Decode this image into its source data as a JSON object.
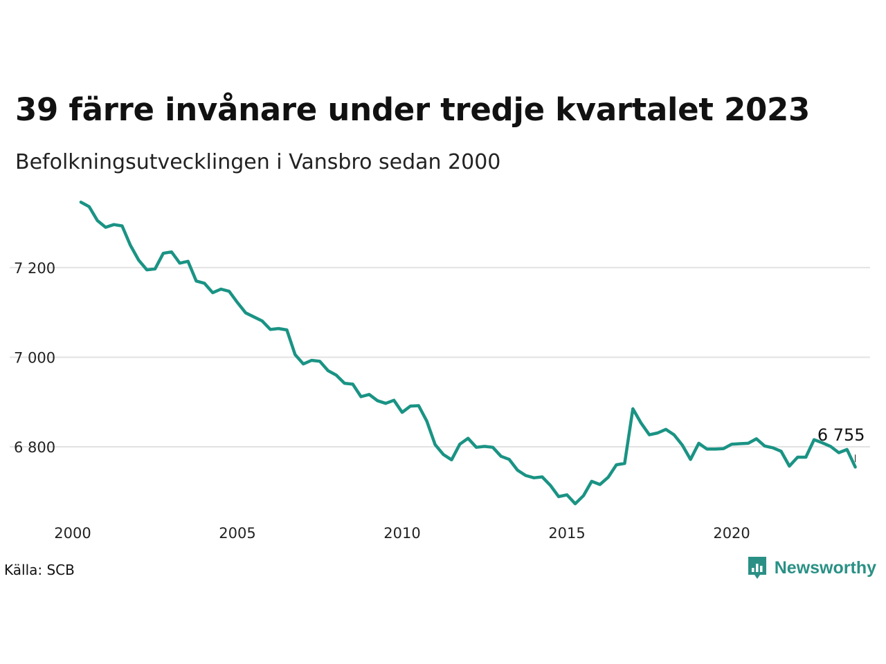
{
  "chart_data": {
    "type": "line",
    "title": "39 färre invånare under tredje kvartalet 2023",
    "subtitle": "Befolkningsutvecklingen i Vansbro sedan 2000",
    "source": "Källa: SCB",
    "brand": "Newsworthy",
    "x_ticks": [
      "2000",
      "2005",
      "2010",
      "2015",
      "2020"
    ],
    "y_ticks": [
      {
        "value": 6800,
        "label": "6 800"
      },
      {
        "value": 7000,
        "label": "7 000"
      },
      {
        "value": 7200,
        "label": "7 200"
      }
    ],
    "xlim": [
      2000,
      2024.2
    ],
    "ylim": [
      6655,
      7365
    ],
    "grid": true,
    "end_label": "6 755",
    "colors": {
      "line": "#1a9384",
      "grid": "#e2e2e2",
      "brand": "#2a9085"
    },
    "series": [
      {
        "x": [
          2000.25,
          2000.5,
          2000.75,
          2001.0,
          2001.25,
          2001.5,
          2001.75,
          2002.0,
          2002.25,
          2002.5,
          2002.75,
          2003.0,
          2003.25,
          2003.5,
          2003.75,
          2004.0,
          2004.25,
          2004.5,
          2004.75,
          2005.0,
          2005.25,
          2005.5,
          2005.75,
          2006.0,
          2006.25,
          2006.5,
          2006.75,
          2007.0,
          2007.25,
          2007.5,
          2007.75,
          2008.0,
          2008.25,
          2008.5,
          2008.75,
          2009.0,
          2009.25,
          2009.5,
          2009.75,
          2010.0,
          2010.25,
          2010.5,
          2010.75,
          2011.0,
          2011.25,
          2011.5,
          2011.75,
          2012.0,
          2012.25,
          2012.5,
          2012.75,
          2013.0,
          2013.25,
          2013.5,
          2013.75,
          2014.0,
          2014.25,
          2014.5,
          2014.75,
          2015.0,
          2015.25,
          2015.5,
          2015.75,
          2016.0,
          2016.25,
          2016.5,
          2016.75,
          2017.0,
          2017.25,
          2017.5,
          2017.75,
          2018.0,
          2018.25,
          2018.5,
          2018.75,
          2019.0,
          2019.25,
          2019.5,
          2019.75,
          2020.0,
          2020.25,
          2020.5,
          2020.75,
          2021.0,
          2021.25,
          2021.5,
          2021.75,
          2022.0,
          2022.25,
          2022.5,
          2022.75,
          2023.0,
          2023.25,
          2023.5,
          2023.75
        ],
        "y": [
          7346,
          7336,
          7305,
          7290,
          7296,
          7293,
          7250,
          7217,
          7195,
          7197,
          7232,
          7235,
          7210,
          7214,
          7170,
          7165,
          7144,
          7152,
          7147,
          7122,
          7099,
          7090,
          7081,
          7062,
          7064,
          7061,
          7006,
          6985,
          6993,
          6991,
          6970,
          6960,
          6942,
          6940,
          6912,
          6917,
          6903,
          6897,
          6904,
          6877,
          6891,
          6892,
          6857,
          6805,
          6783,
          6771,
          6806,
          6819,
          6799,
          6801,
          6799,
          6779,
          6772,
          6748,
          6736,
          6731,
          6733,
          6714,
          6689,
          6693,
          6673,
          6691,
          6723,
          6716,
          6732,
          6760,
          6763,
          6885,
          6853,
          6827,
          6831,
          6839,
          6827,
          6804,
          6772,
          6808,
          6795,
          6795,
          6796,
          6806,
          6807,
          6808,
          6818,
          6802,
          6798,
          6790,
          6757,
          6777,
          6777,
          6816,
          6809,
          6801,
          6787,
          6794,
          6755
        ]
      }
    ]
  }
}
